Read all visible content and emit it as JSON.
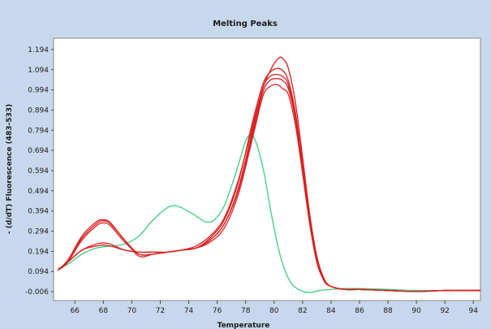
{
  "chart_data": {
    "type": "line",
    "title": "Melting Peaks",
    "xlabel": "Temperature",
    "ylabel": "- (d/dT) Fluorescence (483-533)",
    "xlim": [
      64.5,
      94.5
    ],
    "ylim": [
      -0.05,
      1.25
    ],
    "xticks": [
      66,
      68,
      70,
      72,
      74,
      76,
      78,
      80,
      82,
      84,
      86,
      88,
      90,
      92,
      94
    ],
    "yticks": [
      "1.194",
      "1.094",
      "0.994",
      "0.894",
      "0.794",
      "0.694",
      "0.594",
      "0.494",
      "0.394",
      "0.294",
      "0.194",
      "0.094",
      "-0.006"
    ],
    "grid": false,
    "legend": "none",
    "series": [
      {
        "color": "#3ccc80",
        "x": [
          64.8,
          65.5,
          66.5,
          67.5,
          68.5,
          69.5,
          70.5,
          71.5,
          72.5,
          73.0,
          73.5,
          74.5,
          75.2,
          75.8,
          76.5,
          77.3,
          78.0,
          78.4,
          78.8,
          79.3,
          79.8,
          80.4,
          81.0,
          81.6,
          82.4,
          83.2,
          84.0,
          85.0,
          86.0,
          88.0,
          90.0,
          92.0,
          94.5
        ],
        "y": [
          0.11,
          0.13,
          0.18,
          0.21,
          0.22,
          0.23,
          0.27,
          0.35,
          0.41,
          0.42,
          0.41,
          0.37,
          0.34,
          0.35,
          0.42,
          0.58,
          0.74,
          0.77,
          0.72,
          0.58,
          0.38,
          0.18,
          0.06,
          0.01,
          -0.01,
          0.0,
          0.005,
          0.01,
          0.01,
          0.005,
          0.0,
          0.0,
          0.0
        ]
      },
      {
        "color": "#d82020",
        "x": [
          64.8,
          65.5,
          66.5,
          67.5,
          68.0,
          68.5,
          69.5,
          70.5,
          71.5,
          72.5,
          73.5,
          74.5,
          75.5,
          76.5,
          77.5,
          78.5,
          79.2,
          79.8,
          80.3,
          80.6,
          81.0,
          81.5,
          82.0,
          82.5,
          83.0,
          83.5,
          84.0,
          85.0,
          86.0,
          88.0,
          90.0,
          92.0,
          94.5
        ],
        "y": [
          0.1,
          0.15,
          0.26,
          0.33,
          0.345,
          0.33,
          0.25,
          0.17,
          0.18,
          0.19,
          0.2,
          0.22,
          0.27,
          0.36,
          0.55,
          0.82,
          1.0,
          1.1,
          1.15,
          1.15,
          1.1,
          0.93,
          0.66,
          0.38,
          0.17,
          0.06,
          0.02,
          0.005,
          0.005,
          0.0,
          -0.005,
          0.0,
          0.0
        ]
      },
      {
        "color": "#d82020",
        "x": [
          64.8,
          65.5,
          66.5,
          67.5,
          68.0,
          68.5,
          69.5,
          70.5,
          71.5,
          72.5,
          73.5,
          74.5,
          75.5,
          76.5,
          77.5,
          78.5,
          79.2,
          79.7,
          80.2,
          80.6,
          81.0,
          81.5,
          82.0,
          82.5,
          83.0,
          83.5,
          84.0,
          85.0,
          86.0,
          88.0,
          90.0,
          92.0,
          94.5
        ],
        "y": [
          0.1,
          0.14,
          0.25,
          0.32,
          0.335,
          0.32,
          0.24,
          0.18,
          0.18,
          0.19,
          0.2,
          0.21,
          0.26,
          0.35,
          0.54,
          0.84,
          1.02,
          1.08,
          1.1,
          1.09,
          1.04,
          0.88,
          0.62,
          0.35,
          0.15,
          0.05,
          0.02,
          0.005,
          0.005,
          0.0,
          -0.005,
          0.0,
          0.0
        ]
      },
      {
        "color": "#d82020",
        "x": [
          64.8,
          65.5,
          66.5,
          67.5,
          68.0,
          68.5,
          69.5,
          70.5,
          71.5,
          72.5,
          73.5,
          74.5,
          75.5,
          76.5,
          77.5,
          78.5,
          79.2,
          79.7,
          80.2,
          80.6,
          81.0,
          81.5,
          82.0,
          82.5,
          83.0,
          83.5,
          84.0,
          85.0,
          86.0,
          88.0,
          90.0,
          92.0,
          94.5
        ],
        "y": [
          0.1,
          0.14,
          0.2,
          0.23,
          0.235,
          0.23,
          0.2,
          0.19,
          0.19,
          0.19,
          0.2,
          0.21,
          0.25,
          0.33,
          0.51,
          0.8,
          1.0,
          1.06,
          1.07,
          1.06,
          1.02,
          0.86,
          0.6,
          0.34,
          0.15,
          0.05,
          0.02,
          0.005,
          0.005,
          0.0,
          -0.005,
          0.0,
          0.0
        ]
      },
      {
        "color": "#d82020",
        "x": [
          64.8,
          65.5,
          66.5,
          67.5,
          68.0,
          68.5,
          69.5,
          70.5,
          71.5,
          72.5,
          73.5,
          74.5,
          75.5,
          76.5,
          77.5,
          78.5,
          79.2,
          79.7,
          80.2,
          80.6,
          81.0,
          81.5,
          82.0,
          82.5,
          83.0,
          83.5,
          84.0,
          85.0,
          86.0,
          88.0,
          90.0,
          92.0,
          94.5
        ],
        "y": [
          0.1,
          0.14,
          0.2,
          0.22,
          0.225,
          0.22,
          0.2,
          0.19,
          0.19,
          0.19,
          0.2,
          0.21,
          0.24,
          0.31,
          0.48,
          0.76,
          0.96,
          1.01,
          1.02,
          1.0,
          0.97,
          0.82,
          0.58,
          0.33,
          0.14,
          0.05,
          0.02,
          0.005,
          0.005,
          0.0,
          -0.005,
          0.0,
          0.0
        ]
      },
      {
        "color": "#d82020",
        "x": [
          64.8,
          65.5,
          66.5,
          67.5,
          68.0,
          68.5,
          69.5,
          70.5,
          71.5,
          72.5,
          73.5,
          74.5,
          75.5,
          76.5,
          77.5,
          78.5,
          79.2,
          79.7,
          80.2,
          80.6,
          81.0,
          81.5,
          82.0,
          82.5,
          83.0,
          83.5,
          84.0,
          85.0,
          86.0,
          88.0,
          90.0,
          92.0,
          94.5
        ],
        "y": [
          0.1,
          0.15,
          0.27,
          0.34,
          0.35,
          0.335,
          0.25,
          0.18,
          0.18,
          0.19,
          0.2,
          0.21,
          0.25,
          0.33,
          0.5,
          0.78,
          0.98,
          1.04,
          1.05,
          1.04,
          1.0,
          0.85,
          0.6,
          0.34,
          0.15,
          0.05,
          0.02,
          0.005,
          0.005,
          0.0,
          -0.005,
          0.0,
          0.0
        ]
      }
    ]
  }
}
